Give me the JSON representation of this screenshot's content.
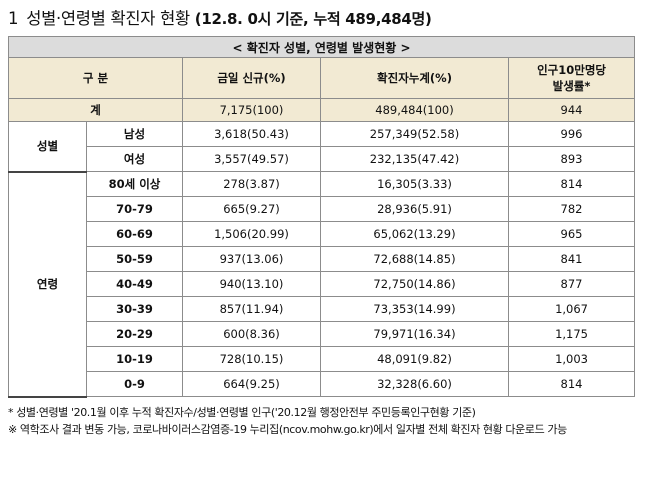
{
  "heading": {
    "number": "1",
    "title": "성별·연령별 확진자 현황",
    "subtitle": "(12.8. 0시 기준, 누적 489,484명)"
  },
  "table": {
    "caption": "< 확진자 성별, 연령별 발생현황 >",
    "headers": {
      "category": "구 분",
      "new_today": "금일 신규(%)",
      "cumulative": "확진자누계(%)",
      "per100k_line1": "인구10만명당",
      "per100k_line2": "발생률*"
    },
    "total": {
      "label": "계",
      "new_today": "7,175(100)",
      "cumulative": "489,484(100)",
      "per100k": "944"
    },
    "sex_group_label": "성별",
    "sex": [
      {
        "label": "남성",
        "new_today": "3,618(50.43)",
        "cumulative": "257,349(52.58)",
        "per100k": "996"
      },
      {
        "label": "여성",
        "new_today": "3,557(49.57)",
        "cumulative": "232,135(47.42)",
        "per100k": "893"
      }
    ],
    "age_group_label": "연령",
    "age": [
      {
        "label": "80세 이상",
        "new_today": "278(3.87)",
        "cumulative": "16,305(3.33)",
        "per100k": "814"
      },
      {
        "label": "70-79",
        "new_today": "665(9.27)",
        "cumulative": "28,936(5.91)",
        "per100k": "782"
      },
      {
        "label": "60-69",
        "new_today": "1,506(20.99)",
        "cumulative": "65,062(13.29)",
        "per100k": "965"
      },
      {
        "label": "50-59",
        "new_today": "937(13.06)",
        "cumulative": "72,688(14.85)",
        "per100k": "841"
      },
      {
        "label": "40-49",
        "new_today": "940(13.10)",
        "cumulative": "72,750(14.86)",
        "per100k": "877"
      },
      {
        "label": "30-39",
        "new_today": "857(11.94)",
        "cumulative": "73,353(14.99)",
        "per100k": "1,067"
      },
      {
        "label": "20-29",
        "new_today": "600(8.36)",
        "cumulative": "79,971(16.34)",
        "per100k": "1,175"
      },
      {
        "label": "10-19",
        "new_today": "728(10.15)",
        "cumulative": "48,091(9.82)",
        "per100k": "1,003"
      },
      {
        "label": "0-9",
        "new_today": "664(9.25)",
        "cumulative": "32,328(6.60)",
        "per100k": "814"
      }
    ]
  },
  "notes": [
    "* 성별·연령별 '20.1월 이후 누적 확진자수/성별·연령별 인구('20.12월 행정안전부 주민등록인구현황 기준)",
    "※ 역학조사 결과 변동 가능, 코로나바이러스감염증-19 누리집(ncov.mohw.go.kr)에서 일자별 전체 확진자 현황 다운로드 가능"
  ]
}
